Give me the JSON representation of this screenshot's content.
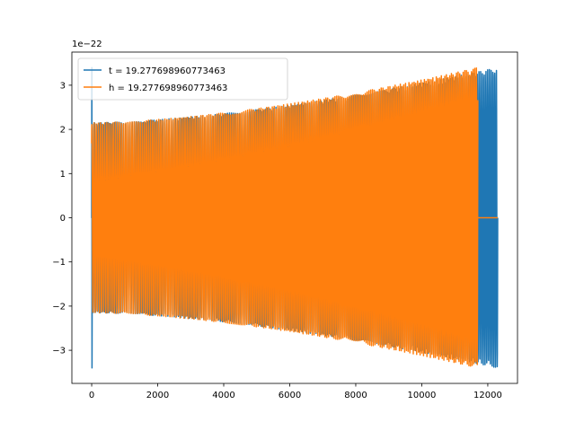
{
  "chart_data": {
    "type": "line",
    "title": "",
    "xlabel": "",
    "ylabel": "",
    "y_offset_label": "1e−22",
    "xlim": [
      -600,
      12900
    ],
    "ylim": [
      -3.75,
      3.75
    ],
    "x_ticks": [
      0,
      2000,
      4000,
      6000,
      8000,
      10000,
      12000
    ],
    "x_tick_labels": [
      "0",
      "2000",
      "4000",
      "6000",
      "8000",
      "10000",
      "12000"
    ],
    "y_ticks": [
      -3,
      -2,
      -1,
      0,
      1,
      2,
      3
    ],
    "y_tick_labels": [
      "−3",
      "−2",
      "−1",
      "0",
      "1",
      "2",
      "3"
    ],
    "grid": false,
    "legend_position": "upper-left",
    "series": [
      {
        "name": "t = 19.277698960773463",
        "color": "#1f77b4",
        "description": "oscillation with envelope growing from ~2.2 to ~3.4, initial spike to ±3.4 near x=0, extends to x≈12300",
        "x_range": [
          0,
          12300
        ],
        "envelope_start": 2.15,
        "envelope_end": 3.4,
        "spike_at_start": 3.4
      },
      {
        "name": "h = 19.277698960773463",
        "color": "#ff7f0e",
        "description": "oscillation with envelope growing from ~2.15 to ~3.4, ends at x≈11700 then flat at 0 until x≈12300",
        "x_range": [
          0,
          11700
        ],
        "flat_zero_range": [
          11700,
          12300
        ],
        "envelope_start": 2.15,
        "envelope_end": 3.4
      }
    ]
  }
}
